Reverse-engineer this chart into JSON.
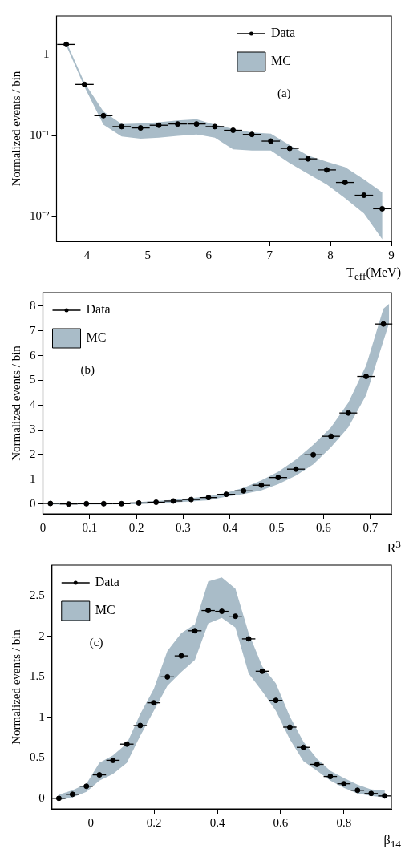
{
  "chart_data": [
    {
      "type": "scatter",
      "xlabel": "T$_{eff}$(MeV)",
      "ylabel": "Normalized events / bin",
      "annotations": [
        "(a)"
      ],
      "legend": "top right",
      "log": "y",
      "xlim": [
        3.5,
        9
      ],
      "ylim": [
        0.005,
        3
      ],
      "xticks": [
        4,
        5,
        6,
        7,
        8,
        9
      ],
      "yticks": [
        {
          "value": 0.01,
          "label": "10⁻²"
        },
        {
          "value": 0.1,
          "label": "10⁻¹"
        },
        1
      ],
      "series": [
        {
          "name": "Data",
          "type": "scatter",
          "color": "#000000",
          "marker": "circle",
          "x": [
            3.66,
            3.96,
            4.27,
            4.57,
            4.88,
            5.18,
            5.49,
            5.8,
            6.1,
            6.4,
            6.71,
            7.02,
            7.33,
            7.63,
            7.94,
            8.24,
            8.55,
            8.85
          ],
          "values": [
            1.34,
            0.43,
            0.177,
            0.13,
            0.125,
            0.135,
            0.14,
            0.14,
            0.13,
            0.117,
            0.104,
            0.086,
            0.07,
            0.052,
            0.038,
            0.0266,
            0.0185,
            0.0126
          ],
          "xerrors": [
            0.15,
            0.15,
            0.15,
            0.15,
            0.15,
            0.15,
            0.15,
            0.15,
            0.15,
            0.15,
            0.15,
            0.15,
            0.15,
            0.15,
            0.15,
            0.15,
            0.15,
            0.15
          ]
        },
        {
          "name": "MC",
          "type": "area",
          "color": "#a9bcc8",
          "values": [
            null,
            null,
            null,
            null,
            null,
            null,
            null,
            null,
            null,
            null,
            null,
            null,
            null,
            null,
            null,
            null,
            null,
            null
          ],
          "x": [
            3.66,
            3.96,
            4.27,
            4.57,
            4.88,
            5.18,
            5.49,
            5.8,
            6.1,
            6.4,
            6.71,
            7.02,
            7.33,
            7.63,
            7.94,
            8.24,
            8.55,
            8.85
          ],
          "lower": [
            1.3,
            0.4,
            0.137,
            0.098,
            0.092,
            0.095,
            0.1,
            0.104,
            0.095,
            0.068,
            0.066,
            0.066,
            0.046,
            0.034,
            0.025,
            0.017,
            0.011,
            0.0053
          ],
          "upper": [
            1.45,
            0.45,
            0.2,
            0.14,
            0.142,
            0.147,
            0.155,
            0.16,
            0.137,
            0.122,
            0.11,
            0.106,
            0.077,
            0.057,
            0.048,
            0.041,
            0.029,
            0.02
          ]
        }
      ]
    },
    {
      "type": "scatter",
      "xlabel": "R$^{3}$",
      "ylabel": "Normalized events / bin",
      "annotations": [
        "(b)"
      ],
      "legend": "top left",
      "xlim": [
        0,
        0.745
      ],
      "ylim": [
        -0.4,
        8.55
      ],
      "xticks": [
        0,
        0.1,
        0.2,
        0.3,
        0.4,
        0.5,
        0.6,
        0.7
      ],
      "yticks": [
        0,
        1,
        2,
        3,
        4,
        5,
        6,
        7,
        8
      ],
      "series": [
        {
          "name": "Data",
          "type": "scatter",
          "color": "#000000",
          "marker": "circle",
          "x": [
            0.016,
            0.055,
            0.093,
            0.13,
            0.168,
            0.205,
            0.242,
            0.279,
            0.317,
            0.354,
            0.392,
            0.429,
            0.467,
            0.503,
            0.541,
            0.578,
            0.616,
            0.653,
            0.691,
            0.728
          ],
          "values": [
            0.02,
            0.0,
            0.01,
            0.01,
            0.01,
            0.04,
            0.07,
            0.12,
            0.18,
            0.26,
            0.39,
            0.53,
            0.76,
            1.07,
            1.41,
            1.99,
            2.74,
            3.68,
            5.16,
            7.28
          ],
          "xerrors": [
            0.019,
            0.019,
            0.019,
            0.019,
            0.019,
            0.019,
            0.019,
            0.019,
            0.019,
            0.019,
            0.019,
            0.019,
            0.019,
            0.019,
            0.019,
            0.019,
            0.019,
            0.019,
            0.019,
            0.019
          ]
        },
        {
          "name": "MC",
          "type": "area",
          "color": "#a9bcc8",
          "values": [
            null,
            null,
            null,
            null,
            null,
            null,
            null,
            null,
            null,
            null,
            null,
            null,
            null,
            null,
            null,
            null,
            null,
            null,
            null,
            null,
            null
          ],
          "x": [
            0.016,
            0.055,
            0.093,
            0.13,
            0.168,
            0.205,
            0.242,
            0.279,
            0.317,
            0.354,
            0.392,
            0.429,
            0.467,
            0.503,
            0.541,
            0.578,
            0.616,
            0.653,
            0.691,
            0.728,
            0.74
          ],
          "lower": [
            -0.02,
            -0.02,
            -0.02,
            -0.02,
            -0.01,
            0.0,
            0.03,
            0.06,
            0.1,
            0.15,
            0.3,
            0.4,
            0.55,
            0.8,
            1.15,
            1.6,
            2.3,
            3.1,
            4.4,
            6.6,
            7.3
          ],
          "upper": [
            0.04,
            0.03,
            0.03,
            0.03,
            0.04,
            0.08,
            0.12,
            0.17,
            0.24,
            0.31,
            0.45,
            0.65,
            0.95,
            1.3,
            1.8,
            2.4,
            3.1,
            4.1,
            5.6,
            7.9,
            8.1
          ]
        }
      ]
    },
    {
      "type": "scatter",
      "xlabel": "β$_{14}$",
      "ylabel": "Normalized events / bin",
      "annotations": [
        "(c)"
      ],
      "legend": "top left",
      "xlim": [
        -0.123,
        0.95
      ],
      "ylim": [
        -0.13,
        2.88
      ],
      "xticks": [
        0,
        0.2,
        0.4,
        0.6,
        0.8
      ],
      "yticks": [
        0,
        0.5,
        1,
        1.5,
        2,
        2.5
      ],
      "series": [
        {
          "name": "Data",
          "type": "scatter",
          "color": "#000000",
          "marker": "circle",
          "x": [
            -0.101,
            -0.058,
            -0.014,
            0.027,
            0.07,
            0.114,
            0.156,
            0.199,
            0.242,
            0.286,
            0.329,
            0.371,
            0.414,
            0.457,
            0.499,
            0.542,
            0.585,
            0.629,
            0.672,
            0.715,
            0.757,
            0.8,
            0.843,
            0.886,
            0.929
          ],
          "values": [
            0.0,
            0.05,
            0.15,
            0.29,
            0.47,
            0.67,
            0.9,
            1.18,
            1.5,
            1.76,
            2.07,
            2.32,
            2.31,
            2.25,
            1.97,
            1.57,
            1.21,
            0.88,
            0.63,
            0.42,
            0.27,
            0.18,
            0.1,
            0.06,
            0.03
          ],
          "xerrors": [
            0.021,
            0.021,
            0.021,
            0.021,
            0.021,
            0.021,
            0.021,
            0.021,
            0.021,
            0.021,
            0.021,
            0.021,
            0.021,
            0.021,
            0.021,
            0.021,
            0.021,
            0.021,
            0.021,
            0.021,
            0.021,
            0.021,
            0.021,
            0.021,
            0.021
          ]
        },
        {
          "name": "MC",
          "type": "area",
          "color": "#a9bcc8",
          "values": [
            null,
            null,
            null,
            null,
            null,
            null,
            null,
            null,
            null,
            null,
            null,
            null,
            null,
            null,
            null,
            null,
            null,
            null,
            null,
            null,
            null,
            null,
            null,
            null,
            null
          ],
          "x": [
            -0.101,
            -0.058,
            -0.014,
            0.027,
            0.07,
            0.114,
            0.156,
            0.199,
            0.242,
            0.286,
            0.329,
            0.371,
            0.414,
            0.457,
            0.499,
            0.542,
            0.585,
            0.629,
            0.672,
            0.715,
            0.757,
            0.8,
            0.843,
            0.886,
            0.929
          ],
          "lower": [
            -0.02,
            0.01,
            0.08,
            0.22,
            0.3,
            0.44,
            0.77,
            1.08,
            1.39,
            1.56,
            1.71,
            2.16,
            2.23,
            2.11,
            1.54,
            1.32,
            1.08,
            0.73,
            0.46,
            0.34,
            0.22,
            0.13,
            0.06,
            0.03,
            0.01
          ],
          "upper": [
            0.045,
            0.1,
            0.18,
            0.44,
            0.53,
            0.68,
            1.04,
            1.35,
            1.82,
            2.04,
            2.15,
            2.68,
            2.73,
            2.59,
            2.04,
            1.63,
            1.42,
            1.01,
            0.7,
            0.49,
            0.34,
            0.25,
            0.17,
            0.11,
            0.1
          ]
        }
      ]
    }
  ]
}
